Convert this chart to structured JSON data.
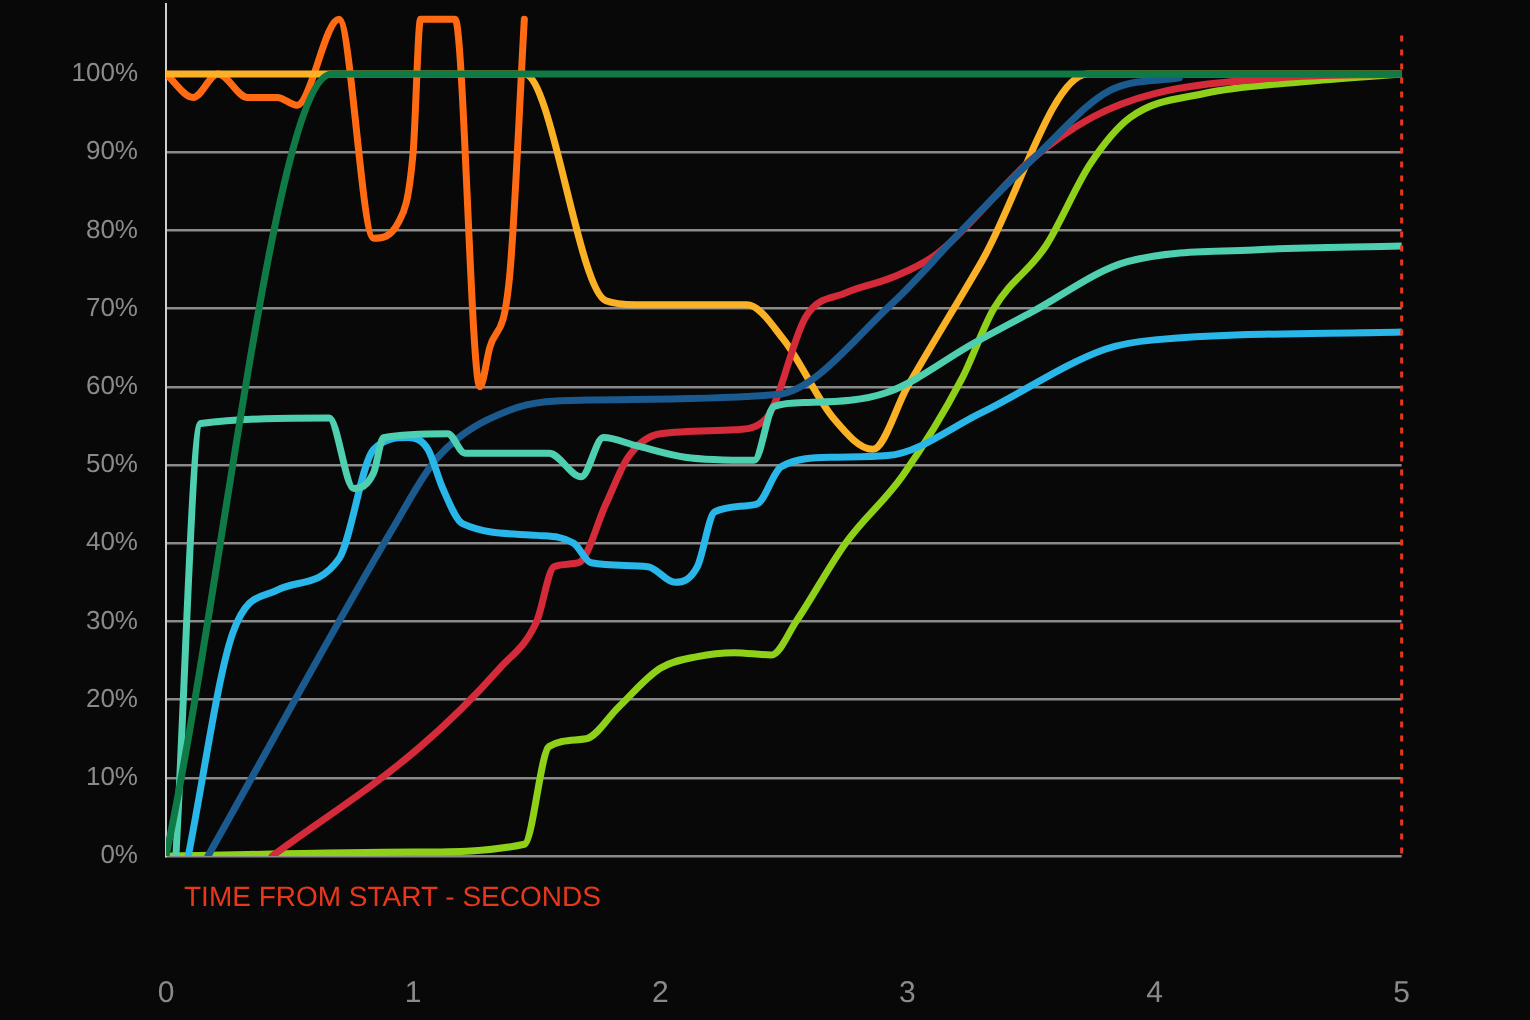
{
  "chart_data": {
    "type": "line",
    "xlabel": "TIME FROM START - SECONDS",
    "xlim": [
      0,
      5
    ],
    "xticks": [
      0,
      1,
      2,
      3,
      4,
      5
    ],
    "ylim": [
      0,
      109
    ],
    "yticks": [
      {
        "value": 0,
        "label": "0%"
      },
      {
        "value": 10,
        "label": "10%"
      },
      {
        "value": 20,
        "label": "20%"
      },
      {
        "value": 30,
        "label": "30%"
      },
      {
        "value": 40,
        "label": "40%"
      },
      {
        "value": 50,
        "label": "50%"
      },
      {
        "value": 60,
        "label": "60%"
      },
      {
        "value": 70,
        "label": "70%"
      },
      {
        "value": 80,
        "label": "80%"
      },
      {
        "value": 90,
        "label": "90%"
      },
      {
        "value": 100,
        "label": "100%"
      }
    ],
    "grid": "y",
    "legend": false,
    "marker": "none",
    "line_style": "solid",
    "ref_lines": [
      {
        "axis": "x",
        "value": 5,
        "color": "#e8381c",
        "line_style": "dotted"
      }
    ],
    "series": [
      {
        "color": "#ff6a13",
        "x": [
          0,
          0.11,
          0.21,
          0.33,
          0.45,
          0.53,
          0.7,
          0.84,
          0.94,
          1.0,
          1.03,
          1.17,
          1.27,
          1.31,
          1.39,
          1.45
        ],
        "values": [
          100,
          97,
          100,
          97,
          97,
          96,
          107,
          79,
          81,
          90,
          107,
          107,
          60,
          65,
          74,
          107
        ]
      },
      {
        "color": "#fbb126",
        "x": [
          0,
          1.45,
          1.78,
          1.9,
          2.35,
          2.5,
          2.7,
          2.86,
          3.0,
          3.3,
          3.73,
          5
        ],
        "values": [
          100,
          100,
          71,
          70.5,
          70.5,
          66,
          56,
          52,
          60,
          76,
          100,
          100
        ]
      },
      {
        "color": "#8fd118",
        "x": [
          0,
          1.0,
          1.45,
          1.55,
          1.7,
          1.83,
          2.0,
          2.15,
          2.3,
          2.45,
          2.55,
          2.75,
          2.98,
          3.22,
          3.35,
          3.56,
          3.74,
          3.9,
          4.2,
          4.6,
          5
        ],
        "values": [
          0,
          0.5,
          1.5,
          14,
          15,
          19,
          24,
          25.5,
          26,
          25.7,
          30,
          40,
          48.6,
          61,
          70,
          78,
          88.5,
          94.4,
          97.5,
          99,
          100
        ]
      },
      {
        "color": "#d42a3a",
        "x": [
          0.43,
          1.03,
          1.35,
          1.5,
          1.57,
          1.67,
          1.78,
          1.87,
          2.0,
          2.3,
          2.43,
          2.59,
          2.75,
          2.94,
          3.12,
          3.5,
          3.75,
          4.0,
          4.5,
          5
        ],
        "values": [
          0,
          14,
          24,
          30,
          37,
          37.5,
          45,
          51,
          54,
          54.5,
          56,
          69,
          72,
          74,
          77,
          89,
          94.5,
          97.5,
          99.5,
          100
        ]
      },
      {
        "color": "#1a5a8e",
        "x": [
          0.17,
          0.92,
          1.1,
          1.39,
          1.7,
          2.47,
          2.94,
          3.22,
          3.53,
          3.82,
          4.1
        ],
        "values": [
          0,
          42,
          51,
          57,
          58.3,
          59,
          70.7,
          80,
          89.8,
          97.9,
          99.5
        ]
      },
      {
        "color": "#29b6e8",
        "x": [
          0.09,
          0.27,
          0.45,
          0.7,
          0.84,
          0.98,
          1.06,
          1.12,
          1.2,
          1.5,
          1.65,
          1.72,
          1.95,
          2.06,
          2.15,
          2.22,
          2.39,
          2.49,
          2.7,
          2.92,
          3.3,
          3.8,
          4.0,
          5
        ],
        "values": [
          0,
          28.5,
          34,
          38,
          52,
          53.5,
          52,
          47,
          42.5,
          41,
          40,
          37.5,
          37,
          35,
          37,
          44,
          45,
          49.8,
          51,
          51.2,
          56.7,
          64.8,
          66,
          67
        ]
      },
      {
        "color": "#4ecfb0",
        "x": [
          0.04,
          0.14,
          0.66,
          0.76,
          0.84,
          0.88,
          1.14,
          1.21,
          1.55,
          1.68,
          1.77,
          1.9,
          2.1,
          2.38,
          2.46,
          2.6,
          2.92,
          3.27,
          3.5,
          3.89,
          4.4,
          5
        ],
        "values": [
          0,
          55.3,
          56,
          47,
          49,
          53.5,
          54,
          51.5,
          51.5,
          48.5,
          53.5,
          52.5,
          51,
          50.6,
          57.5,
          58,
          59.3,
          65.6,
          69.5,
          76,
          77.5,
          78
        ]
      },
      {
        "color": "#0f7a45",
        "x": [
          0,
          0.67,
          5
        ],
        "values": [
          0,
          100,
          100
        ]
      }
    ]
  }
}
